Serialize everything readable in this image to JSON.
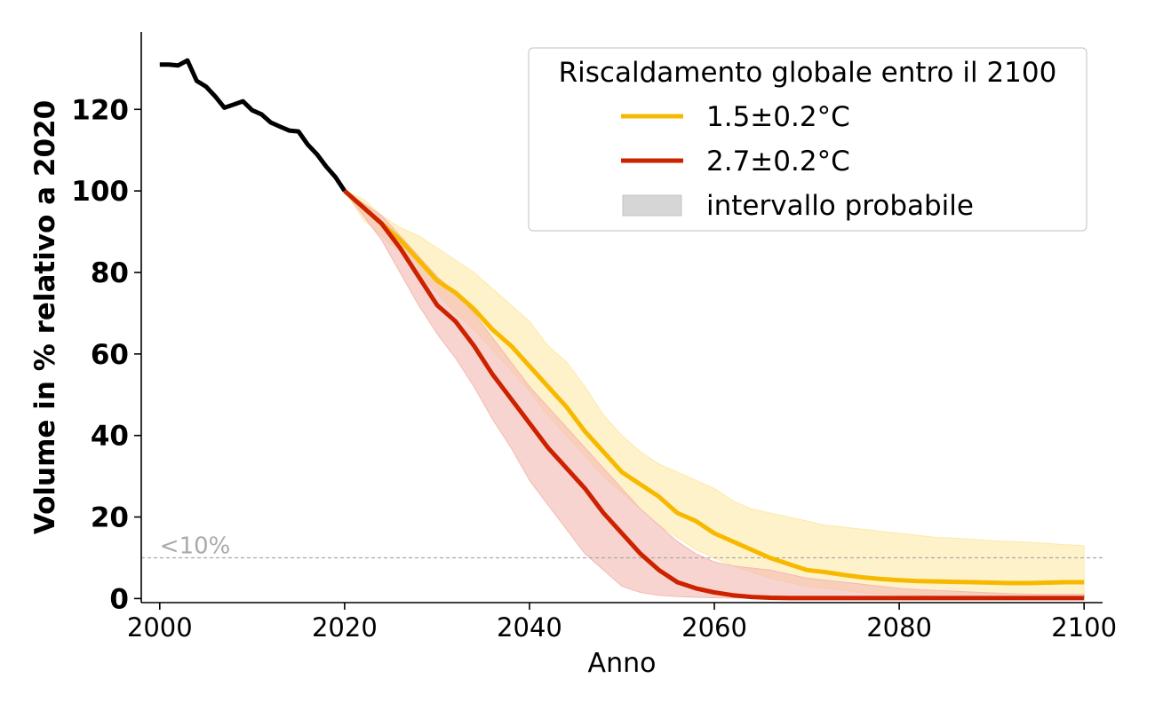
{
  "chart_data": {
    "type": "line",
    "title": "",
    "xlabel": "Anno",
    "ylabel": "Volume in % relativo a 2020",
    "xlim": [
      1998,
      2102
    ],
    "ylim": [
      -1,
      139
    ],
    "xticks": [
      2000,
      2020,
      2040,
      2060,
      2080,
      2100
    ],
    "yticks": [
      0,
      20,
      40,
      60,
      80,
      100,
      120
    ],
    "grid": false,
    "legend": {
      "placement": "top-right",
      "title": "Riscaldamento globale entro il 2100",
      "entries": [
        {
          "label": "1.5±0.2°C",
          "kind": "line",
          "color": "#f7b900"
        },
        {
          "label": "2.7±0.2°C",
          "kind": "line",
          "color": "#cc2200"
        },
        {
          "label": "intervallo probabile",
          "kind": "patch",
          "color": "#d6d6d6"
        }
      ]
    },
    "reference_line": {
      "y": 10,
      "label": "<10%",
      "color": "#aaaaaa"
    },
    "historical": {
      "color": "#000000",
      "x": [
        2000,
        2001,
        2002,
        2003,
        2004,
        2005,
        2006,
        2007,
        2008,
        2009,
        2010,
        2011,
        2012,
        2013,
        2014,
        2015,
        2016,
        2017,
        2018,
        2019,
        2020
      ],
      "y": [
        131,
        131,
        130.8,
        132,
        127,
        125.6,
        123.2,
        120.4,
        121.2,
        122,
        119.8,
        118.8,
        116.8,
        115.8,
        114.8,
        114.6,
        111.4,
        109,
        106,
        103.4,
        100
      ]
    },
    "series": [
      {
        "name": "1.5±0.2°C",
        "color": "#f7b900",
        "band_color": "#fde9a8",
        "x": [
          2020,
          2022,
          2024,
          2026,
          2028,
          2030,
          2032,
          2034,
          2036,
          2038,
          2040,
          2042,
          2044,
          2046,
          2048,
          2050,
          2052,
          2054,
          2056,
          2058,
          2060,
          2062,
          2064,
          2066,
          2068,
          2070,
          2072,
          2074,
          2076,
          2078,
          2080,
          2082,
          2084,
          2086,
          2088,
          2090,
          2092,
          2094,
          2096,
          2098,
          2100
        ],
        "y": [
          100,
          96,
          92,
          88,
          83,
          78,
          75,
          71,
          66,
          62,
          57,
          52,
          47,
          41,
          36,
          31,
          28,
          25,
          21,
          19,
          16,
          14,
          12,
          10,
          8.5,
          7,
          6.5,
          5.8,
          5.2,
          4.8,
          4.5,
          4.3,
          4.2,
          4.1,
          4,
          3.9,
          3.8,
          3.8,
          3.9,
          4,
          4
        ],
        "upper": [
          100,
          98,
          94,
          91,
          89,
          86,
          83,
          80,
          76,
          72,
          68,
          62,
          58,
          52,
          45,
          40,
          36,
          33,
          31,
          29,
          27,
          24,
          22,
          21,
          20,
          19,
          18,
          17.5,
          17,
          16.5,
          16,
          15.5,
          15,
          14.8,
          14.5,
          14.2,
          14,
          13.8,
          13.5,
          13.2,
          13
        ],
        "lower": [
          100,
          93,
          89,
          85,
          80,
          75,
          70,
          66,
          61,
          56,
          51,
          45,
          40,
          35,
          30,
          26,
          22,
          18,
          15,
          12,
          10,
          8,
          6.5,
          5,
          4,
          3,
          2.5,
          2,
          1.5,
          1.2,
          1,
          0.8,
          0.6,
          0.5,
          0.5,
          0.4,
          0.4,
          0.3,
          0.3,
          0.3,
          0.3
        ]
      },
      {
        "name": "2.7±0.2°C",
        "color": "#cc2200",
        "band_color": "#f4b8b0",
        "x": [
          2020,
          2022,
          2024,
          2026,
          2028,
          2030,
          2032,
          2034,
          2036,
          2038,
          2040,
          2042,
          2044,
          2046,
          2048,
          2050,
          2052,
          2054,
          2056,
          2058,
          2060,
          2062,
          2064,
          2066,
          2068,
          2070,
          2072,
          2074,
          2076,
          2078,
          2080,
          2082,
          2084,
          2086,
          2088,
          2090,
          2092,
          2094,
          2096,
          2098,
          2100
        ],
        "y": [
          100,
          96,
          92,
          86,
          79,
          72,
          68,
          62,
          55,
          49,
          43,
          37,
          32,
          27,
          21,
          16,
          11,
          7,
          4,
          2.5,
          1.5,
          0.8,
          0.4,
          0.2,
          0.1,
          0.1,
          0.1,
          0.1,
          0.1,
          0.1,
          0.1,
          0.1,
          0.1,
          0.1,
          0.1,
          0.1,
          0.1,
          0.1,
          0.1,
          0.1,
          0.1
        ],
        "upper": [
          100,
          97,
          94,
          89,
          84,
          79,
          75,
          70,
          64,
          58,
          52,
          47,
          42,
          37,
          32,
          27,
          22,
          18,
          14,
          11,
          9,
          8,
          7.5,
          7,
          6,
          5,
          4.5,
          4,
          3.5,
          3,
          2.5,
          2.2,
          2,
          1.8,
          1.6,
          1.4,
          1.2,
          1.1,
          1,
          1,
          1
        ],
        "lower": [
          100,
          94,
          88,
          80,
          72,
          65,
          59,
          52,
          44,
          37,
          29,
          23,
          17,
          11,
          7,
          3,
          1.5,
          0.8,
          0.5,
          0.3,
          0.2,
          0.1,
          0.1,
          0.1,
          0.1,
          0.1,
          0.1,
          0.1,
          0.1,
          0.1,
          0.1,
          0.1,
          0.1,
          0.1,
          0.1,
          0.1,
          0.1,
          0.1,
          0.1,
          0.1,
          0.1
        ]
      }
    ]
  }
}
